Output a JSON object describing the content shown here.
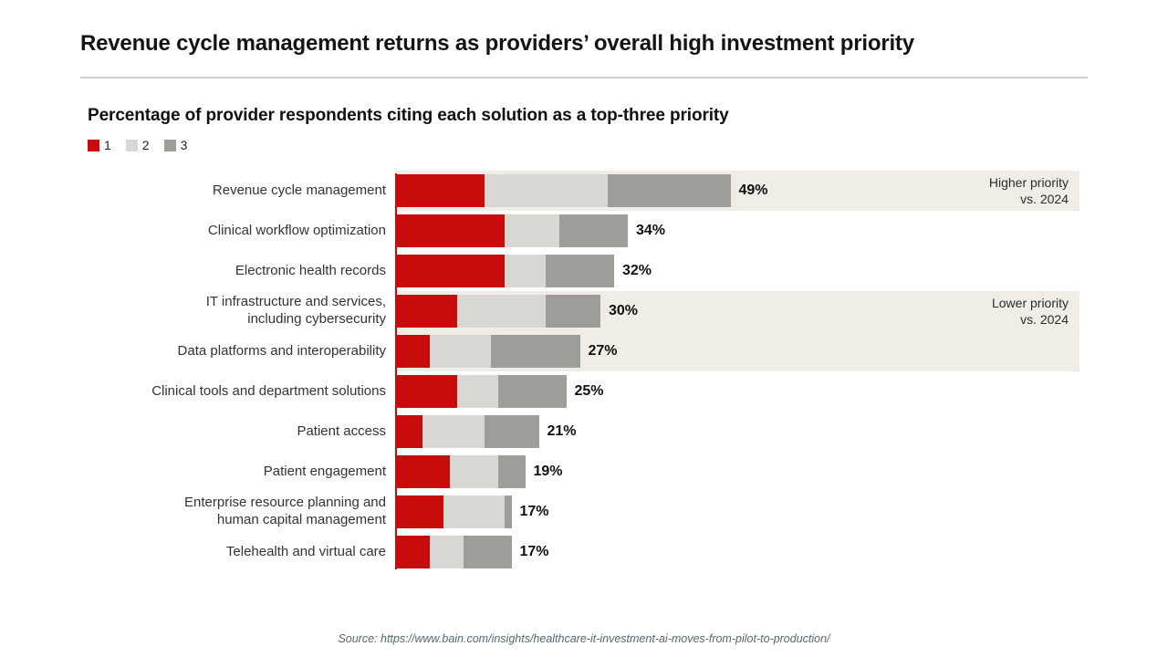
{
  "page": {
    "title": "Revenue cycle management returns as providers’ overall high investment priority",
    "source": "Source: https://www.bain.com/insights/healthcare-it-investment-ai-moves-from-pilot-to-production/"
  },
  "chart": {
    "subtitle": "Percentage of provider respondents citing each solution as a top-three priority",
    "legend": [
      {
        "label": "1",
        "color": "#c80c0c"
      },
      {
        "label": "2",
        "color": "#d8d7d4"
      },
      {
        "label": "3",
        "color": "#9e9d9a"
      }
    ]
  },
  "chart_data": {
    "type": "bar",
    "orientation": "horizontal",
    "stacked": true,
    "unit": "%",
    "xlim": [
      0,
      100
    ],
    "grid": false,
    "legend_position": "top-left",
    "categories": [
      "Revenue cycle management",
      "Clinical workflow optimization",
      "Electronic health records",
      "IT infrastructure and services,\nincluding cybersecurity",
      "Data platforms and interoperability",
      "Clinical tools and department solutions",
      "Patient access",
      "Patient engagement",
      "Enterprise resource planning and\nhuman capital management",
      "Telehealth and virtual care"
    ],
    "series": [
      {
        "name": "1",
        "color": "#c80c0c",
        "values": [
          13,
          16,
          16,
          9,
          5,
          9,
          4,
          8,
          7,
          5
        ]
      },
      {
        "name": "2",
        "color": "#d8d7d4",
        "values": [
          18,
          8,
          6,
          13,
          9,
          6,
          9,
          7,
          9,
          5
        ]
      },
      {
        "name": "3",
        "color": "#9e9d9a",
        "values": [
          18,
          10,
          10,
          8,
          13,
          10,
          8,
          4,
          1,
          7
        ]
      }
    ],
    "totals": [
      49,
      34,
      32,
      30,
      27,
      25,
      21,
      19,
      17,
      17
    ],
    "annotations": [
      {
        "text": "Higher priority\nvs. 2024",
        "row_start": 0,
        "row_span": 1
      },
      {
        "text": "Lower priority\nvs. 2024",
        "row_start": 3,
        "row_span": 2
      }
    ],
    "band_color": "#f0ede7",
    "axis_line_color": "#c80c0c"
  }
}
